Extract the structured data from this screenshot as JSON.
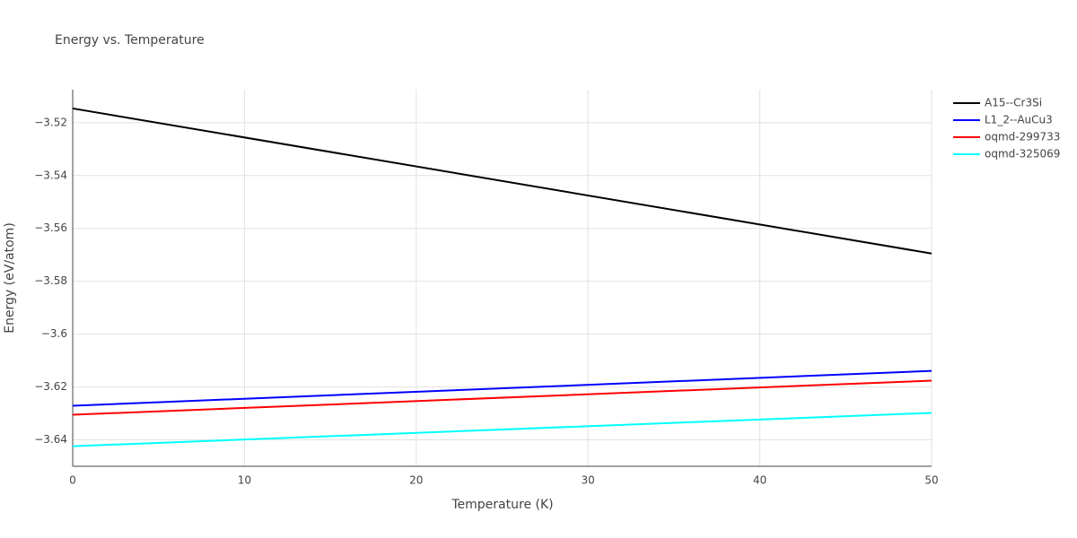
{
  "chart_data": {
    "type": "line",
    "title": "Energy vs. Temperature",
    "x_label": "Temperature (K)",
    "y_label": "Energy (eV/atom)",
    "x": [
      0,
      50
    ],
    "series": [
      {
        "name": "A15--Cr3Si",
        "color": "#000000",
        "values": [
          -3.5146,
          -3.5695
        ]
      },
      {
        "name": "L1_2--AuCu3",
        "color": "#0000ff",
        "values": [
          -3.6271,
          -3.6139
        ]
      },
      {
        "name": "oqmd-299733",
        "color": "#ff0000",
        "values": [
          -3.6305,
          -3.6176
        ]
      },
      {
        "name": "oqmd-325069",
        "color": "#00ffff",
        "values": [
          -3.6424,
          -3.6298
        ]
      }
    ],
    "xlim": [
      0,
      50
    ],
    "xticks": [
      0,
      10,
      20,
      30,
      40,
      50
    ],
    "ylim": [
      -3.65,
      -3.5075
    ],
    "yticks": [
      {
        "value": -3.64,
        "label": "−3.64"
      },
      {
        "value": -3.62,
        "label": "−3.62"
      },
      {
        "value": -3.6,
        "label": "−3.6"
      },
      {
        "value": -3.58,
        "label": "−3.58"
      },
      {
        "value": -3.56,
        "label": "−3.56"
      },
      {
        "value": -3.54,
        "label": "−3.54"
      },
      {
        "value": -3.52,
        "label": "−3.52"
      }
    ],
    "grid": true,
    "legend": "right"
  }
}
